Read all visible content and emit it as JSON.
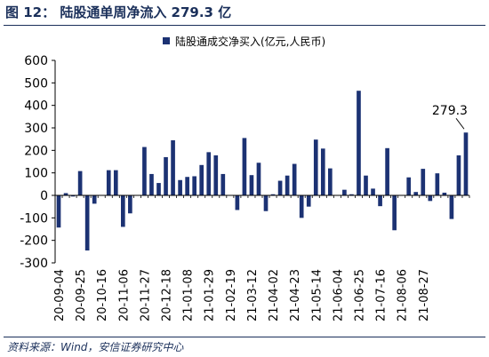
{
  "figure": {
    "title": "图 12：  陆股通单周净流入 279.3 亿",
    "source": "资料来源：Wind，安信证券研究中心"
  },
  "chart_data": {
    "type": "bar",
    "title": "",
    "xlabel": "",
    "ylabel": "",
    "ylim": [
      -300,
      600
    ],
    "yticks": [
      -300,
      -200,
      -100,
      0,
      100,
      200,
      300,
      400,
      500,
      600
    ],
    "grid": false,
    "legend_position": "top",
    "bar_color": "#1c3273",
    "series": [
      {
        "name": "陆股通成交净买入(亿元,人民币)",
        "values": [
          -143,
          10,
          -5,
          108,
          -245,
          -37,
          0,
          112,
          112,
          -140,
          -80,
          0,
          215,
          95,
          55,
          170,
          245,
          68,
          82,
          85,
          135,
          192,
          178,
          95,
          0,
          -65,
          255,
          90,
          145,
          -70,
          5,
          65,
          88,
          140,
          -100,
          -50,
          248,
          208,
          120,
          0,
          25,
          5,
          465,
          88,
          30,
          -48,
          210,
          -155,
          0,
          80,
          15,
          118,
          -25,
          98,
          12,
          -105,
          178,
          279.3
        ]
      }
    ],
    "x_tick_labels": [
      "20-09-04",
      "20-09-25",
      "20-10-16",
      "20-11-06",
      "20-11-27",
      "20-12-18",
      "21-01-08",
      "21-01-29",
      "21-02-19",
      "21-03-12",
      "21-04-02",
      "21-04-23",
      "21-05-14",
      "21-06-04",
      "21-06-25",
      "21-07-16",
      "21-08-06",
      "21-08-27"
    ],
    "x_tick_every": 3,
    "annotations": [
      {
        "text": "279.3",
        "index": 57,
        "value": 279.3
      }
    ]
  }
}
